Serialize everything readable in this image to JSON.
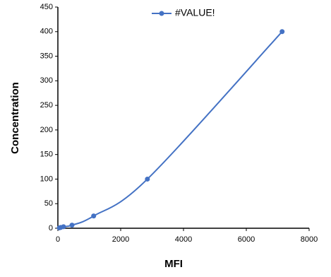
{
  "chart_data": {
    "type": "line",
    "x_label": "MFI",
    "y_label": "Concentration",
    "series": [
      {
        "name": "#VALUE!",
        "color": "#4472c4",
        "x": [
          45,
          90,
          180,
          450,
          1140,
          2850,
          7140
        ],
        "values": [
          0.78,
          1.56,
          3.13,
          6.25,
          25,
          100,
          400
        ]
      }
    ],
    "xlim": [
      0,
      8000
    ],
    "xticks": [
      0,
      2000,
      4000,
      6000,
      8000
    ],
    "ylim": [
      0,
      450
    ],
    "yticks": [
      0,
      50,
      100,
      150,
      200,
      250,
      300,
      350,
      400,
      450
    ],
    "smooth": true,
    "markers": true
  }
}
